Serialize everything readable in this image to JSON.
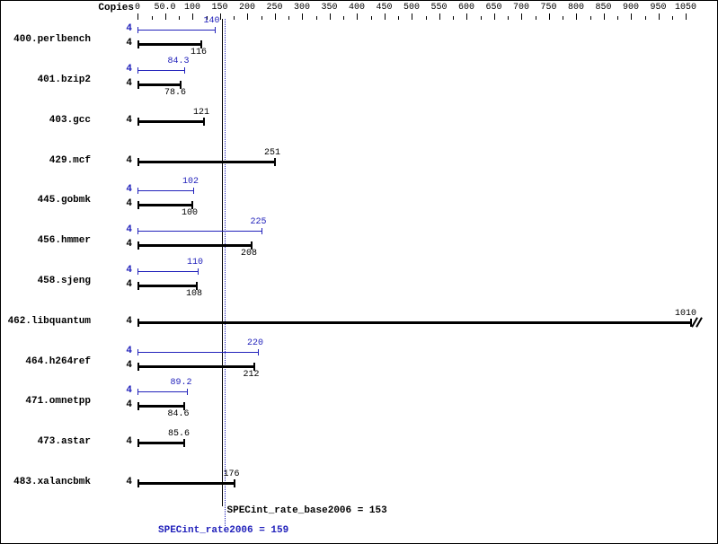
{
  "header": {
    "copies_label": "Copies"
  },
  "colors": {
    "peak": "#2222bb",
    "base": "#000000",
    "background": "#ffffff"
  },
  "chart_data": {
    "type": "bar",
    "orientation": "horizontal",
    "axis": {
      "position": "top",
      "tick_labels": [
        "0",
        "50.0",
        "100",
        "150",
        "200",
        "250",
        "300",
        "350",
        "400",
        "450",
        "500",
        "550",
        "600",
        "650",
        "700",
        "750",
        "800",
        "850",
        "900",
        "950",
        "1050"
      ],
      "axis_break_between": [
        "950",
        "1050"
      ]
    },
    "series_legend": [
      {
        "name": "peak",
        "metric": "SPECint_rate2006"
      },
      {
        "name": "base",
        "metric": "SPECint_rate_base2006"
      }
    ],
    "groups": [
      {
        "name": "400.perlbench",
        "bars": [
          {
            "series": "peak",
            "copies": "4",
            "value": 140,
            "label": "140"
          },
          {
            "series": "base",
            "copies": "4",
            "value": 116,
            "label": "116"
          }
        ]
      },
      {
        "name": "401.bzip2",
        "bars": [
          {
            "series": "peak",
            "copies": "4",
            "value": 84.3,
            "label": "84.3"
          },
          {
            "series": "base",
            "copies": "4",
            "value": 78.6,
            "label": "78.6"
          }
        ]
      },
      {
        "name": "403.gcc",
        "bars": [
          {
            "series": "base",
            "copies": "4",
            "value": 121,
            "label": "121"
          }
        ]
      },
      {
        "name": "429.mcf",
        "bars": [
          {
            "series": "base",
            "copies": "4",
            "value": 251,
            "label": "251"
          }
        ]
      },
      {
        "name": "445.gobmk",
        "bars": [
          {
            "series": "peak",
            "copies": "4",
            "value": 102,
            "label": "102"
          },
          {
            "series": "base",
            "copies": "4",
            "value": 100,
            "label": "100"
          }
        ]
      },
      {
        "name": "456.hmmer",
        "bars": [
          {
            "series": "peak",
            "copies": "4",
            "value": 225,
            "label": "225"
          },
          {
            "series": "base",
            "copies": "4",
            "value": 208,
            "label": "208"
          }
        ]
      },
      {
        "name": "458.sjeng",
        "bars": [
          {
            "series": "peak",
            "copies": "4",
            "value": 110,
            "label": "110"
          },
          {
            "series": "base",
            "copies": "4",
            "value": 108,
            "label": "108"
          }
        ]
      },
      {
        "name": "462.libquantum",
        "bars": [
          {
            "series": "base",
            "copies": "4",
            "value": 1010,
            "label": "1010",
            "axis_break": true
          }
        ]
      },
      {
        "name": "464.h264ref",
        "bars": [
          {
            "series": "peak",
            "copies": "4",
            "value": 220,
            "label": "220"
          },
          {
            "series": "base",
            "copies": "4",
            "value": 212,
            "label": "212"
          }
        ]
      },
      {
        "name": "471.omnetpp",
        "bars": [
          {
            "series": "peak",
            "copies": "4",
            "value": 89.2,
            "label": "89.2"
          },
          {
            "series": "base",
            "copies": "4",
            "value": 84.6,
            "label": "84.6"
          }
        ]
      },
      {
        "name": "473.astar",
        "bars": [
          {
            "series": "base",
            "copies": "4",
            "value": 85.6,
            "label": "85.6"
          }
        ]
      },
      {
        "name": "483.xalancbmk",
        "bars": [
          {
            "series": "base",
            "copies": "4",
            "value": 176,
            "label": "176"
          }
        ]
      }
    ],
    "reference_lines": [
      {
        "series": "base",
        "value": 153,
        "text": "SPECint_rate_base2006 = 153"
      },
      {
        "series": "peak",
        "value": 159,
        "text": "SPECint_rate2006 = 159"
      }
    ]
  }
}
